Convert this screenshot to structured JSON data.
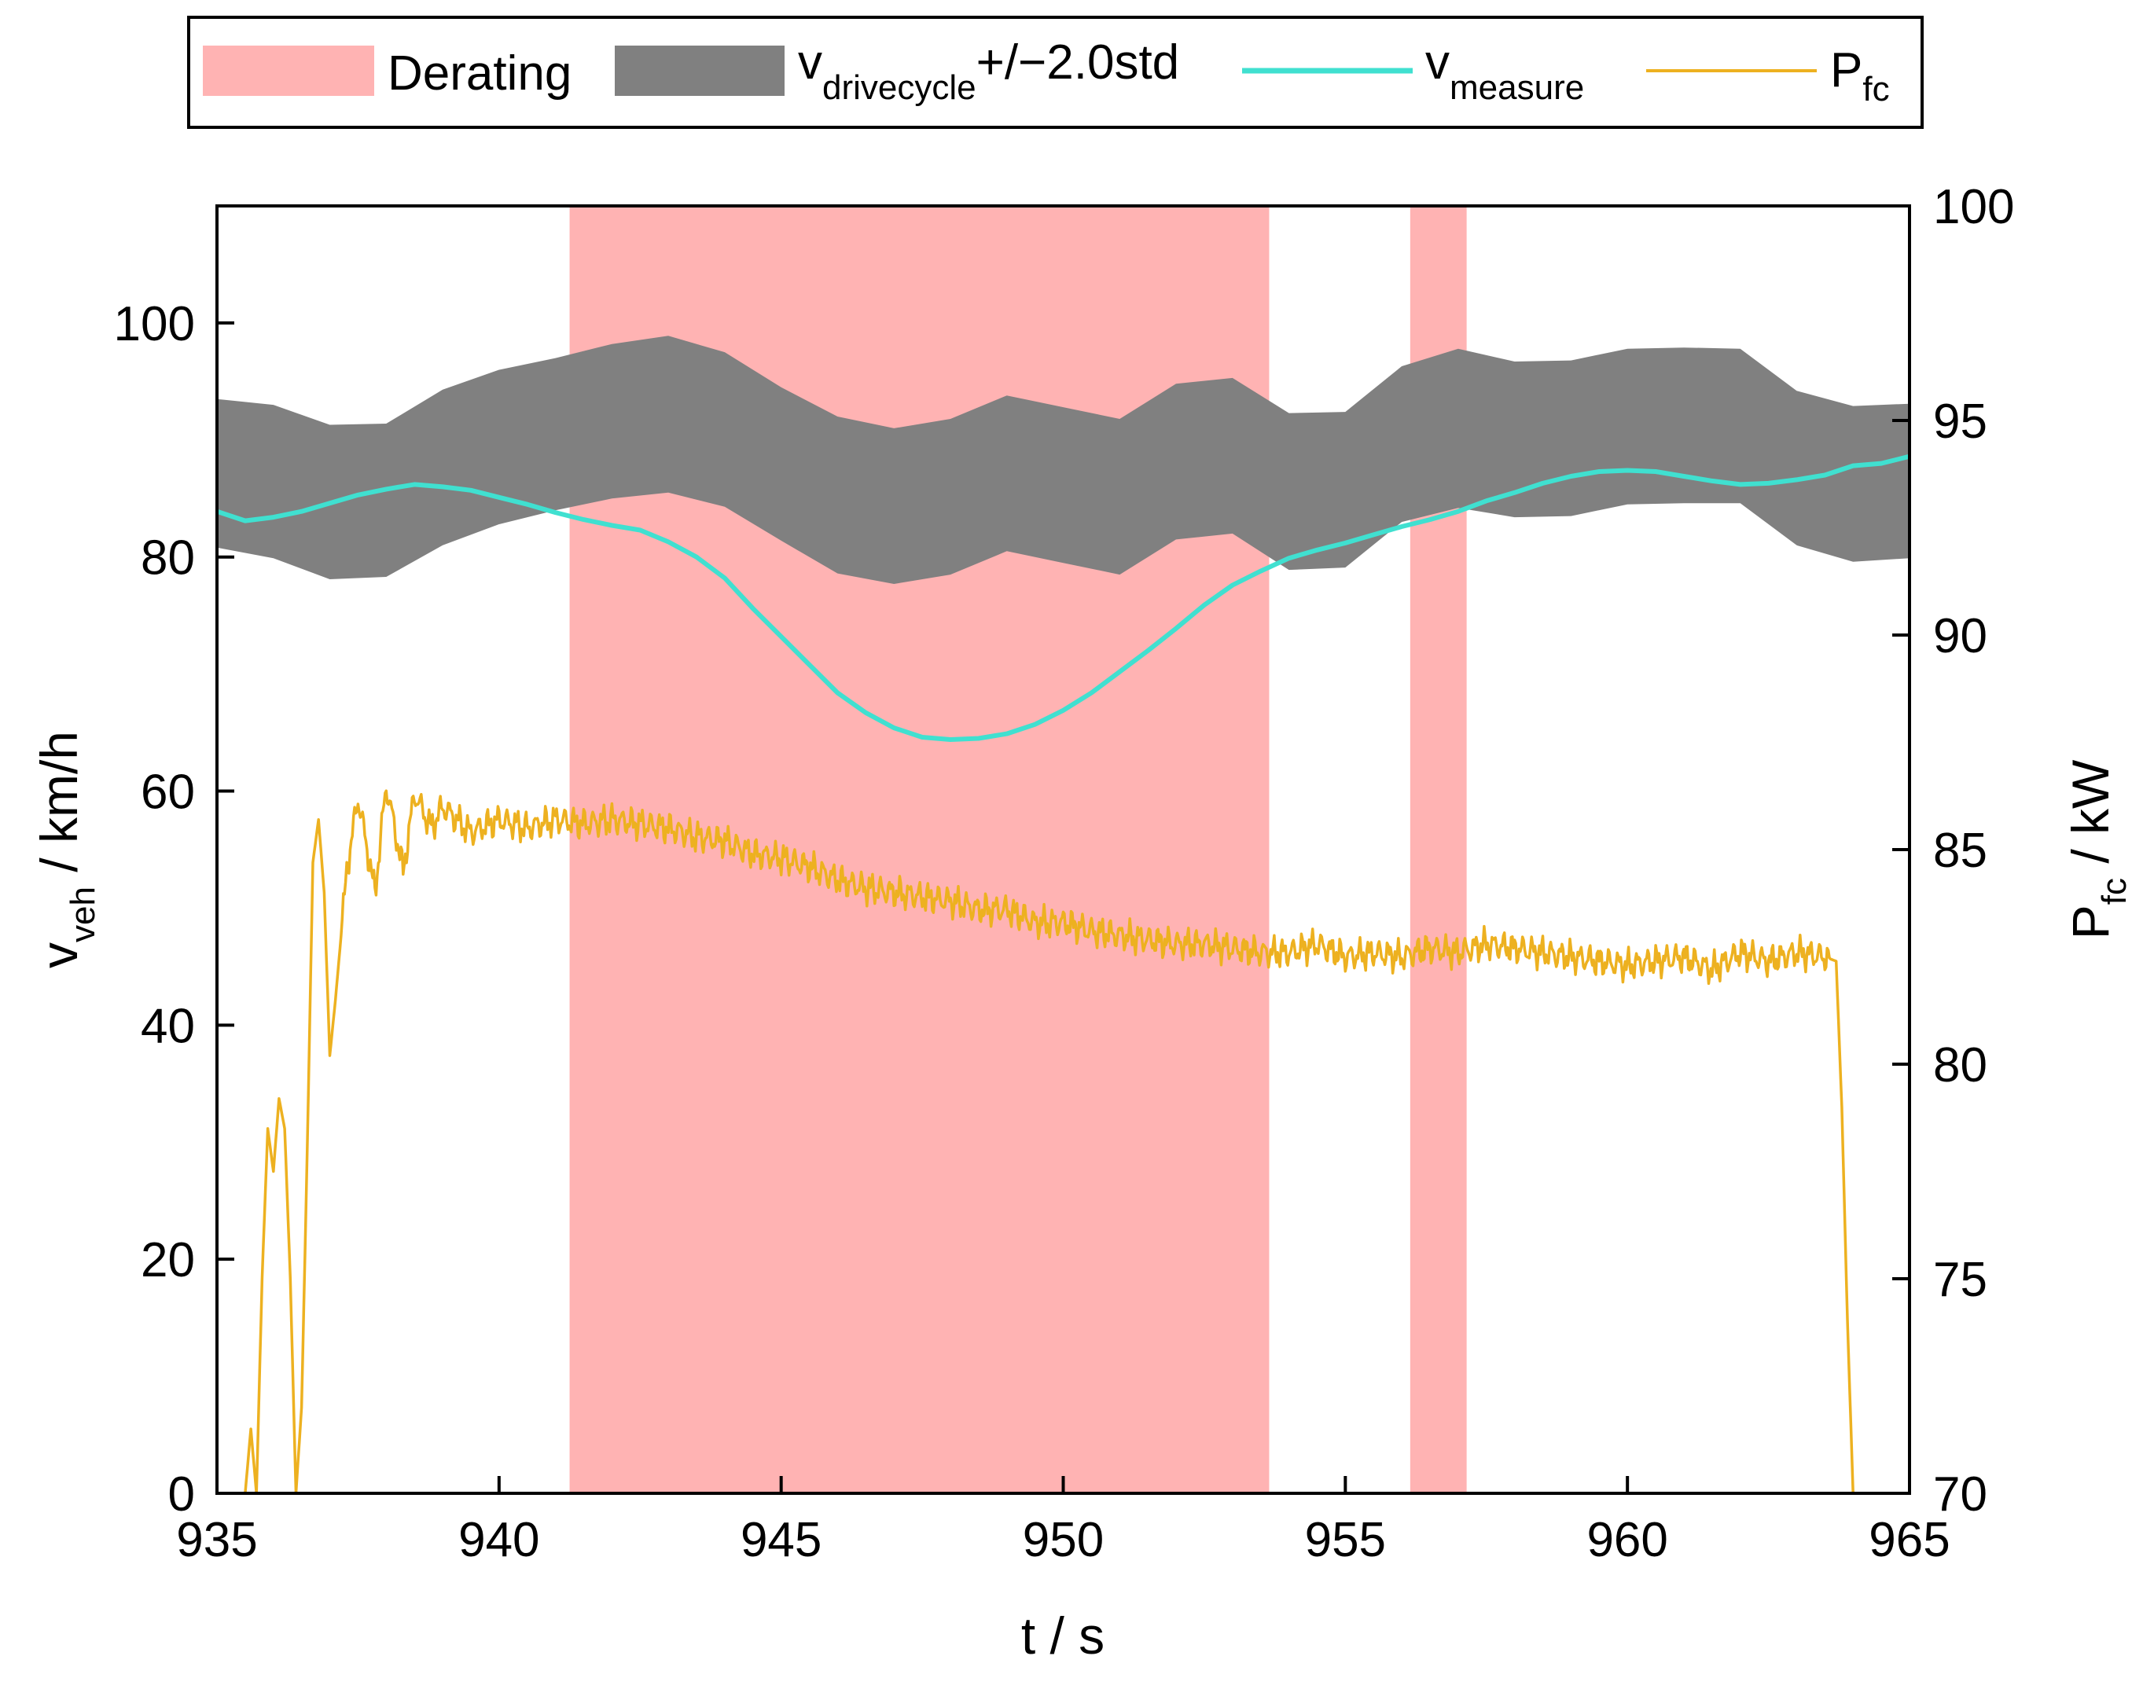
{
  "chart_data": {
    "type": "line",
    "xlabel": "t / s",
    "ylabel_left": {
      "main": "v",
      "sub": "veh",
      "rest": " / km/h"
    },
    "ylabel_right": {
      "main": "P",
      "sub": "fc",
      "rest": " / kW"
    },
    "xlim": [
      935,
      965
    ],
    "ylim_left": [
      0,
      110
    ],
    "ylim_right": [
      70,
      100
    ],
    "xticks": [
      "935",
      "940",
      "945",
      "950",
      "955",
      "960",
      "965"
    ],
    "yticks_left": [
      "0",
      "20",
      "40",
      "60",
      "80",
      "100"
    ],
    "yticks_right": [
      "70",
      "75",
      "80",
      "85",
      "90",
      "95",
      "100"
    ],
    "legend": {
      "position": "top (outside)",
      "entries": [
        {
          "label": "Derating",
          "type": "patch"
        },
        {
          "label": "v",
          "sub": "drivecycle",
          "suffix": "+/−2.0std",
          "type": "patch"
        },
        {
          "label": "v",
          "sub": "measure",
          "type": "line"
        },
        {
          "label": "P",
          "sub": "fc",
          "type": "line"
        }
      ]
    },
    "colors": {
      "derating": "#ffb3b3",
      "band": "#808080",
      "v_measure": "#40e0d0",
      "p_fc": "#edb120"
    },
    "derating_intervals": [
      [
        941.25,
        953.65
      ],
      [
        956.15,
        957.15
      ]
    ],
    "band": {
      "name": "v_drivecycle +/- 2.0std",
      "x": [
        935,
        936,
        937,
        938,
        939,
        940,
        941,
        942,
        943,
        944,
        945,
        946,
        947,
        948,
        949,
        950,
        951,
        952,
        953,
        954,
        955,
        956,
        957,
        958,
        959,
        960,
        961,
        962,
        963,
        964,
        965
      ],
      "upper": [
        93.5,
        93,
        91.3,
        91.4,
        94.3,
        96,
        97,
        98.2,
        98.9,
        97.5,
        94.5,
        92,
        91,
        91.8,
        93.8,
        92.8,
        91.8,
        94.8,
        95.3,
        92.3,
        92.4,
        96.3,
        97.8,
        96.7,
        96.8,
        97.8,
        97.9,
        97.8,
        94.2,
        92.9,
        93.1
      ],
      "lower": [
        80.8,
        79.9,
        78.1,
        78.3,
        81,
        82.8,
        84,
        85,
        85.5,
        84.3,
        81.4,
        78.6,
        77.7,
        78.5,
        80.5,
        79.5,
        78.5,
        81.5,
        82,
        78.9,
        79.1,
        83,
        84.2,
        83.4,
        83.5,
        84.5,
        84.6,
        84.6,
        81,
        79.6,
        79.9
      ]
    },
    "v_measure": {
      "name": "v_measure",
      "x": [
        935,
        935.5,
        936,
        936.5,
        937,
        937.5,
        938,
        938.5,
        939,
        939.5,
        940,
        940.5,
        941,
        941.5,
        942,
        942.5,
        943,
        943.5,
        944,
        944.5,
        945,
        945.5,
        946,
        946.5,
        947,
        947.5,
        948,
        948.5,
        949,
        949.5,
        950,
        950.5,
        951,
        951.5,
        952,
        952.5,
        953,
        953.5,
        954,
        954.5,
        955,
        955.5,
        956,
        956.5,
        957,
        957.5,
        958,
        958.5,
        959,
        959.5,
        960,
        960.5,
        961,
        961.5,
        962,
        962.5,
        963,
        963.5,
        964,
        964.5,
        965
      ],
      "y": [
        83.9,
        83.1,
        83.4,
        83.9,
        84.6,
        85.3,
        85.8,
        86.2,
        86.0,
        85.7,
        85.1,
        84.5,
        83.8,
        83.2,
        82.7,
        82.3,
        81.3,
        80.0,
        78.2,
        75.6,
        73.2,
        70.8,
        68.4,
        66.7,
        65.4,
        64.6,
        64.4,
        64.5,
        64.9,
        65.7,
        66.9,
        68.4,
        70.2,
        72.0,
        73.9,
        75.9,
        77.6,
        78.8,
        79.9,
        80.6,
        81.2,
        81.9,
        82.6,
        83.2,
        83.9,
        84.8,
        85.5,
        86.3,
        86.9,
        87.3,
        87.4,
        87.3,
        86.9,
        86.5,
        86.2,
        86.3,
        86.6,
        87.0,
        87.8,
        88.0,
        88.6
      ]
    },
    "p_fc": {
      "name": "P_fc",
      "x": [
        935.5,
        935.6,
        935.7,
        935.8,
        935.9,
        936.0,
        936.1,
        936.2,
        936.3,
        936.4,
        936.5,
        936.6,
        936.7,
        936.8,
        936.9,
        937.0,
        937.1,
        937.3,
        937.5,
        937.8,
        938.0,
        938.3,
        938.5,
        938.8,
        939.0,
        939.5,
        940,
        940.5,
        941,
        941.5,
        942,
        942.5,
        943,
        943.5,
        944,
        944.5,
        945,
        945.5,
        946,
        946.5,
        947,
        947.5,
        948,
        948.5,
        949,
        949.5,
        950,
        950.5,
        951,
        951.5,
        952,
        952.5,
        953,
        953.5,
        954,
        954.5,
        955,
        955.5,
        956,
        956.5,
        957,
        957.5,
        958,
        958.5,
        959,
        959.5,
        960,
        960.5,
        961,
        961.5,
        962,
        962.5,
        963,
        963.5,
        963.7,
        963.8,
        963.9,
        964.0
      ],
      "y": [
        70.0,
        71.5,
        70.0,
        75.0,
        78.5,
        77.5,
        79.2,
        78.5,
        75.0,
        70.0,
        72.0,
        78.0,
        84.7,
        85.7,
        84.0,
        80.2,
        81.5,
        84.5,
        86.2,
        84.0,
        86.5,
        84.5,
        86.3,
        85.5,
        86.0,
        85.4,
        85.7,
        85.5,
        85.7,
        85.6,
        85.7,
        85.6,
        85.5,
        85.3,
        85.2,
        84.9,
        84.8,
        84.6,
        84.3,
        84.1,
        84.0,
        83.9,
        83.8,
        83.6,
        83.6,
        83.3,
        83.3,
        83.1,
        83.0,
        82.9,
        82.8,
        82.8,
        82.7,
        82.6,
        82.6,
        82.8,
        82.5,
        82.6,
        82.5,
        82.7,
        82.6,
        82.8,
        82.7,
        82.6,
        82.5,
        82.4,
        82.3,
        82.4,
        82.5,
        82.2,
        82.6,
        82.4,
        82.6,
        82.5,
        82.4,
        79.0,
        74.0,
        70.0
      ]
    }
  }
}
